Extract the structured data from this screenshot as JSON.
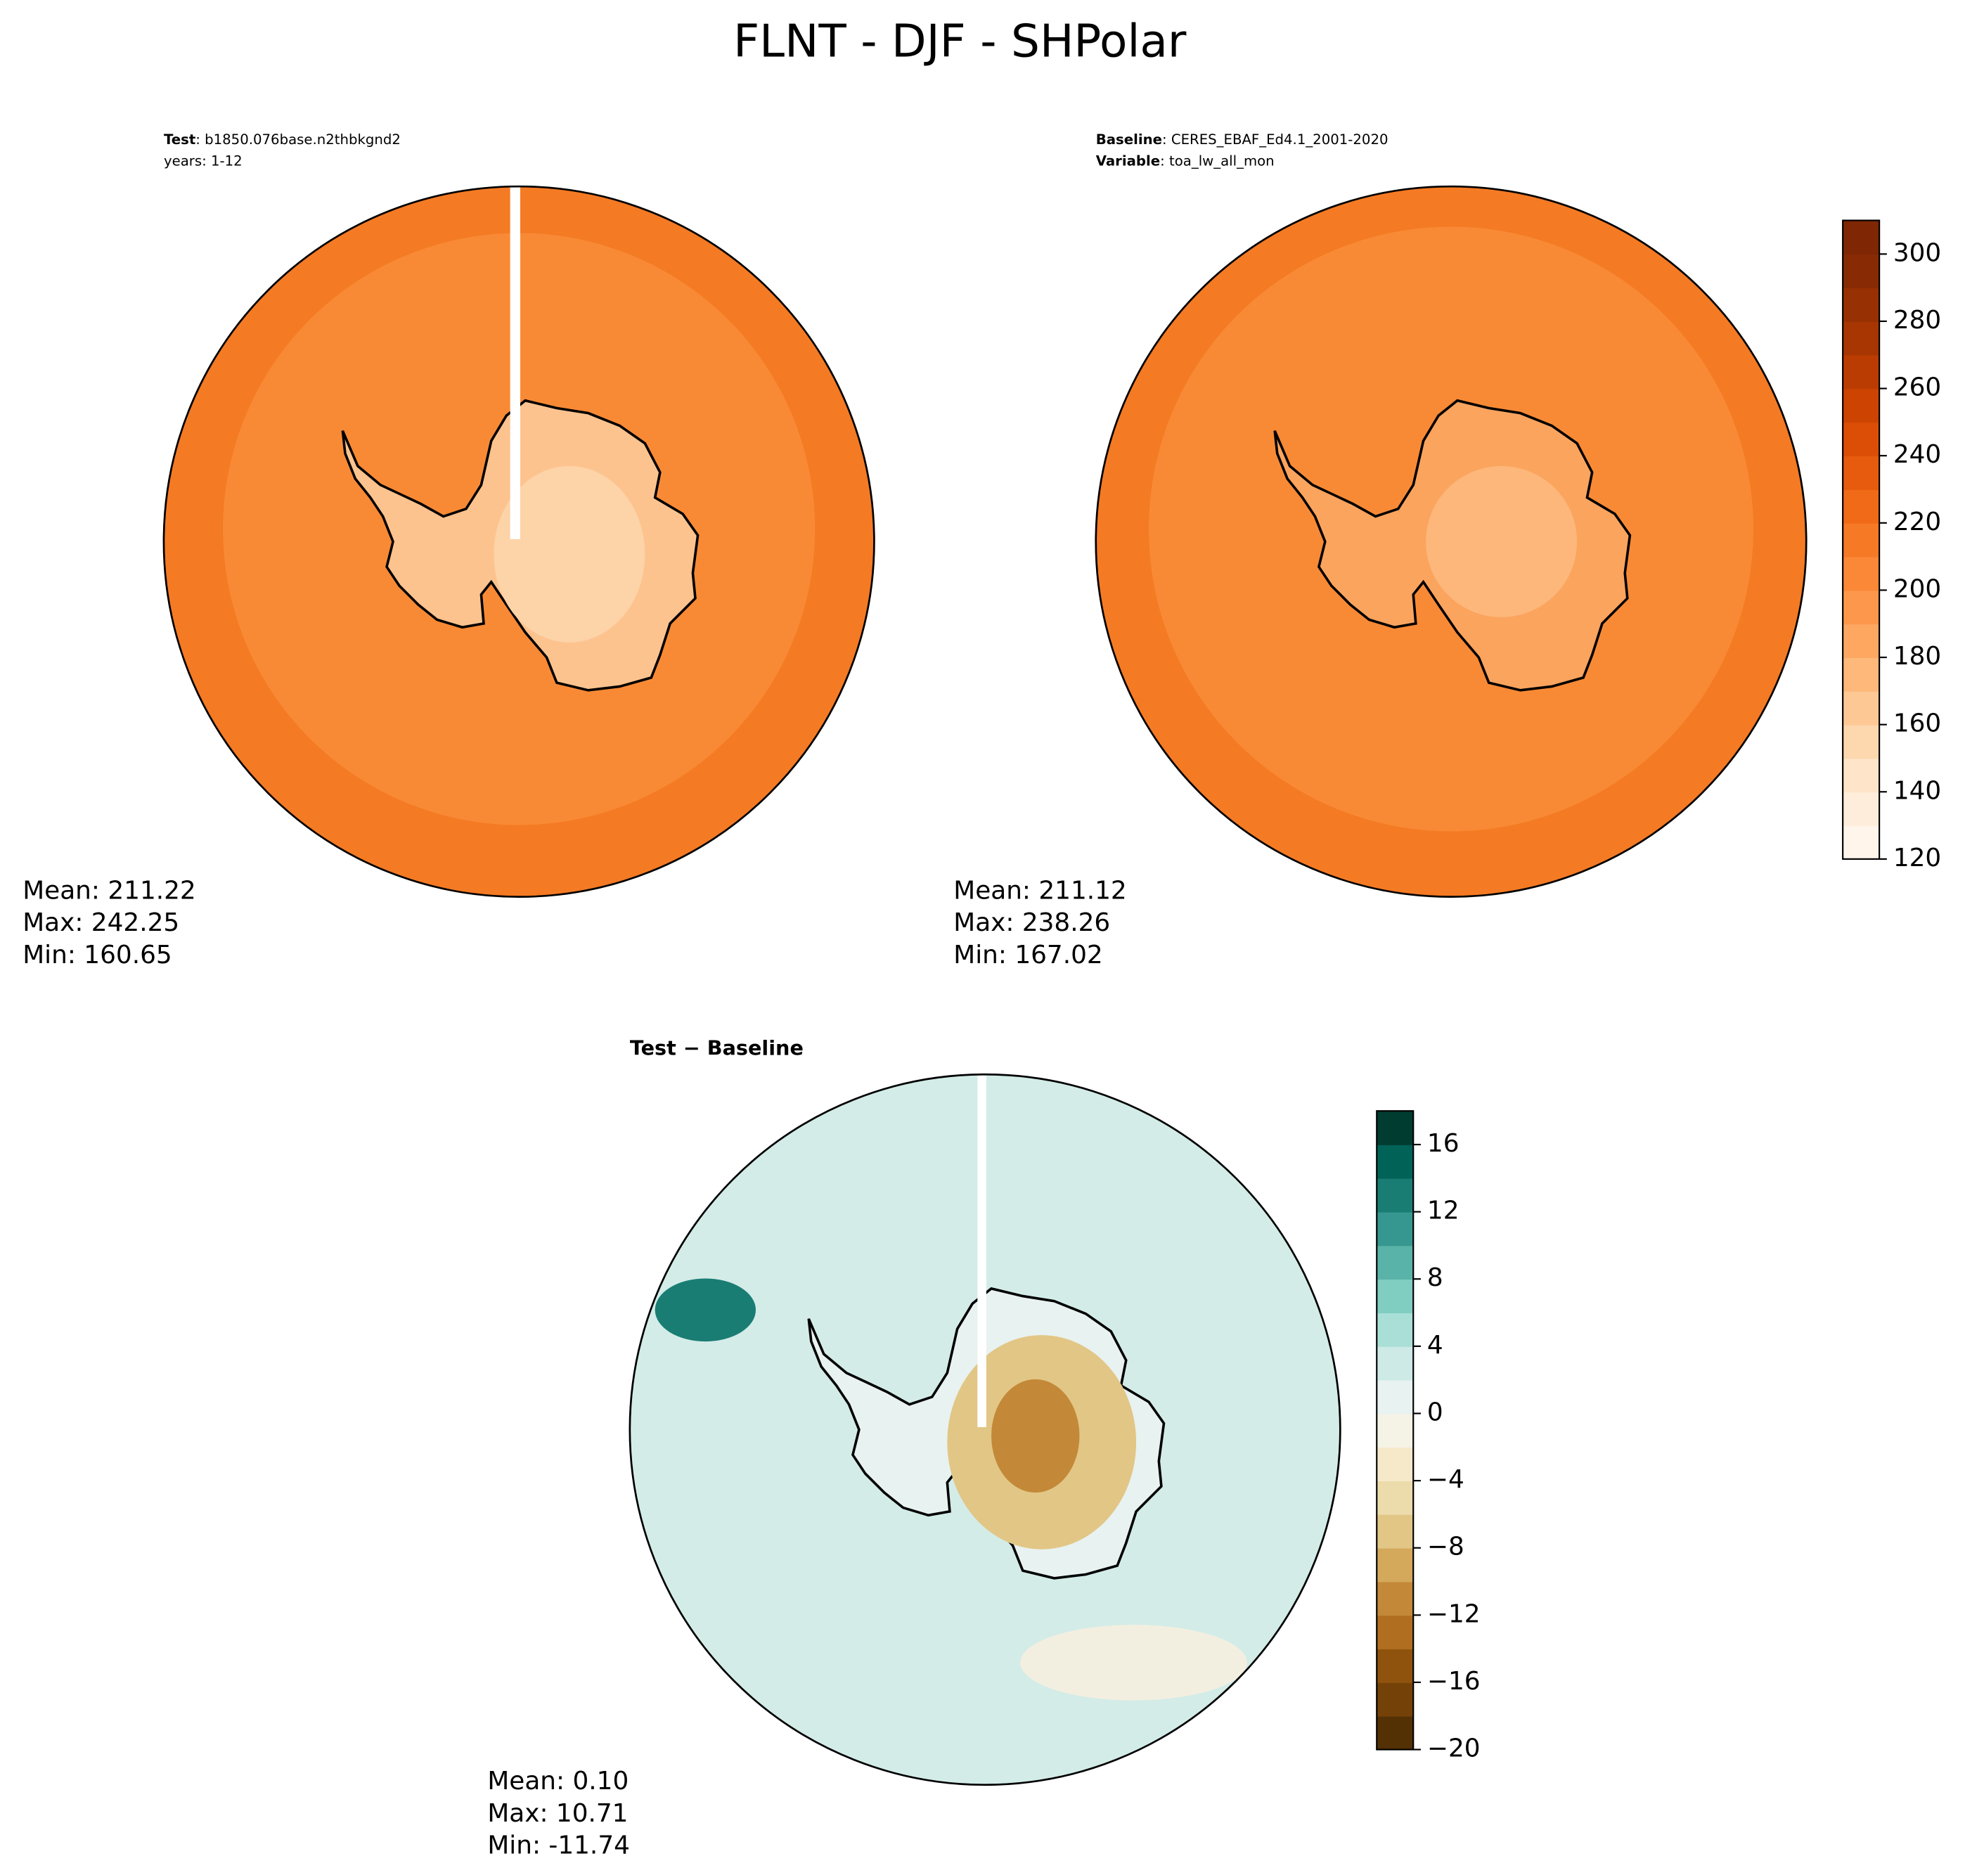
{
  "title": "FLNT - DJF - SHPolar",
  "panels": [
    {
      "header": [
        {
          "key": "Test",
          "value": ": b1850.076base.n2thbkgnd2"
        },
        {
          "value": "years: 1-12"
        }
      ],
      "stats": [
        "Mean: 211.22",
        "Max: 242.25",
        "Min: 160.65"
      ]
    },
    {
      "header": [
        {
          "key": "Baseline",
          "value": ": CERES_EBAF_Ed4.1_2001-2020"
        },
        {
          "key": "Variable",
          "value": ": toa_lw_all_mon"
        }
      ],
      "stats": [
        "Mean: 211.12",
        "Max: 238.26",
        "Min: 167.02"
      ]
    },
    {
      "header": [
        {
          "key": "Test − Baseline"
        }
      ],
      "stats": [
        "Mean:  0.10",
        "Max: 10.71",
        "Min: -11.74"
      ]
    }
  ],
  "colorbars": [
    {
      "lim": [
        120,
        310
      ],
      "ticks": [
        120,
        140,
        160,
        180,
        200,
        220,
        240,
        260,
        280,
        300
      ],
      "colors": [
        "#fff5eb",
        "#feedda",
        "#fee4c8",
        "#fdd7ae",
        "#fdc894",
        "#fdb87a",
        "#fda761",
        "#fd974b",
        "#fb8837",
        "#f67926",
        "#f06a18",
        "#e65b0e",
        "#dc4e06",
        "#cd4302",
        "#bb3c02",
        "#a83603",
        "#973103",
        "#882b04",
        "#7f2704"
      ]
    },
    {
      "lim": [
        -20,
        18
      ],
      "ticks": [
        {
          "value": -20,
          "label": "−20"
        },
        {
          "value": -16,
          "label": "−16"
        },
        {
          "value": -12,
          "label": "−12"
        },
        {
          "value": -8,
          "label": "−8"
        },
        {
          "value": -4,
          "label": "−4"
        },
        0,
        4,
        8,
        12,
        16
      ],
      "colors": [
        "#543005",
        "#744208",
        "#8f530d",
        "#b06e20",
        "#c38938",
        "#d4a95c",
        "#e2c686",
        "#ecdbab",
        "#f5e9ca",
        "#f5f2e6",
        "#e8f2f0",
        "#cdeae6",
        "#aadfd7",
        "#80cdc1",
        "#5ab3a8",
        "#35978f",
        "#1a7d74",
        "#016358",
        "#003c30"
      ]
    }
  ]
}
